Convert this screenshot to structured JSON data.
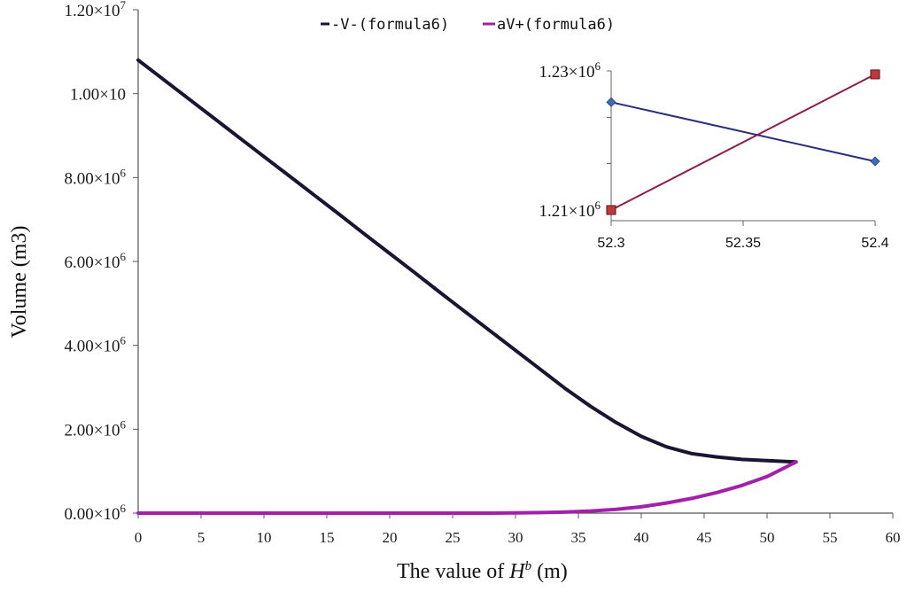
{
  "chart_data": [
    {
      "type": "line",
      "title": "",
      "xlabel_prefix": "The value of ",
      "xlabel_var": "H",
      "xlabel_sup": "b",
      "xlabel_unit": " (m)",
      "ylabel": "Volume (m3)",
      "xlim": [
        0,
        60
      ],
      "ylim": [
        0,
        12000000
      ],
      "x_ticks": [
        "0",
        "5",
        "10",
        "15",
        "20",
        "25",
        "30",
        "35",
        "40",
        "45",
        "50",
        "55",
        "60"
      ],
      "y_ticks": [
        {
          "value": 0,
          "mantissa": "0.00",
          "times": "×",
          "base": "10",
          "exp": "6"
        },
        {
          "value": 2000000,
          "mantissa": "2.00",
          "times": "×",
          "base": "10",
          "exp": "6"
        },
        {
          "value": 4000000,
          "mantissa": "4.00",
          "times": "×",
          "base": "10",
          "exp": "6"
        },
        {
          "value": 6000000,
          "mantissa": "6.00",
          "times": "×",
          "base": "10",
          "exp": "6"
        },
        {
          "value": 8000000,
          "mantissa": "8.00",
          "times": "×",
          "base": "10",
          "exp": "6"
        },
        {
          "value": 10000000,
          "mantissa": "1.00",
          "times": "×",
          "base": "10",
          "exp": ""
        },
        {
          "value": 12000000,
          "mantissa": "1.20",
          "times": "×",
          "base": "10",
          "exp": "7"
        }
      ],
      "legend_position": "top",
      "series": [
        {
          "name": "-V-(formula6)",
          "color": "#1b1533",
          "x": [
            0,
            2,
            4,
            6,
            8,
            10,
            12,
            14,
            16,
            18,
            20,
            22,
            24,
            26,
            28,
            30,
            32,
            34,
            36,
            38,
            40,
            42,
            44,
            46,
            48,
            50,
            52.3
          ],
          "y": [
            10800000,
            10340000,
            9880000,
            9420000,
            8960000,
            8500000,
            8040000,
            7580000,
            7120000,
            6650000,
            6190000,
            5730000,
            5260000,
            4800000,
            4340000,
            3880000,
            3420000,
            2960000,
            2540000,
            2160000,
            1830000,
            1580000,
            1420000,
            1340000,
            1280000,
            1250000,
            1220000
          ]
        },
        {
          "name": "aV+(formula6)",
          "color": "#a320a8",
          "x": [
            0,
            5,
            10,
            15,
            20,
            25,
            28,
            30,
            32,
            34,
            36,
            38,
            40,
            42,
            44,
            46,
            48,
            50,
            52.3
          ],
          "y": [
            0,
            0,
            0,
            0,
            0,
            0,
            0,
            5000,
            12000,
            25000,
            50000,
            90000,
            150000,
            240000,
            350000,
            490000,
            660000,
            870000,
            1220000
          ]
        }
      ]
    },
    {
      "type": "line",
      "title": "",
      "xlim": [
        52.3,
        52.4
      ],
      "ylim": [
        1210000,
        1230000
      ],
      "x_ticks": [
        "52.3",
        "52.35",
        "52.4"
      ],
      "y_ticks": [
        {
          "value": 1210000,
          "mantissa": "1.21",
          "times": "×",
          "base": "10",
          "exp": "6"
        },
        {
          "value": 1230000,
          "mantissa": "1.23",
          "times": "×",
          "base": "10",
          "exp": "6"
        }
      ],
      "series": [
        {
          "color": "#2a2e7a",
          "marker": "diamond",
          "marker_color": "#3d6fb8",
          "x": [
            52.3,
            52.4
          ],
          "y": [
            1225500,
            1217000
          ]
        },
        {
          "color": "#8a1f4c",
          "marker": "square",
          "marker_color": "#c23838",
          "x": [
            52.3,
            52.4
          ],
          "y": [
            1210000,
            1229500
          ]
        }
      ]
    }
  ]
}
